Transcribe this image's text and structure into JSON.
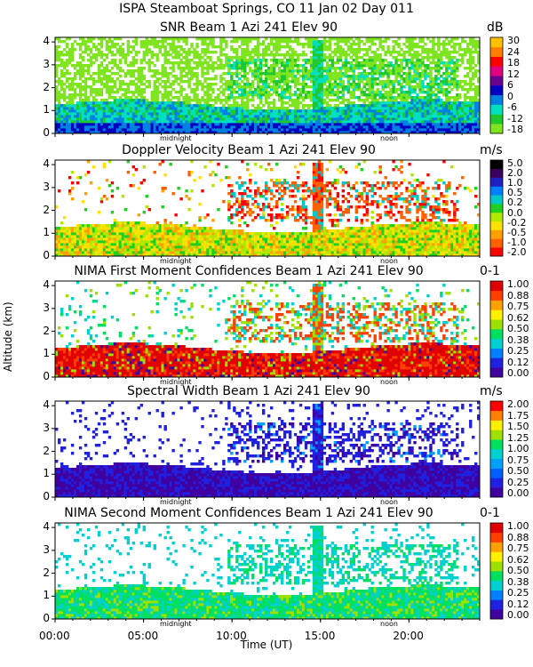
{
  "main_title": "ISPA Steamboat Springs, CO   11 Jan 02 Day 011",
  "y_axis_label": "Altitude (km)",
  "x_axis_label": "Time (UT)",
  "time_markers": {
    "midnight": "midnight",
    "noon": "noon"
  },
  "colors": {
    "snr": [
      "#7FE520",
      "#1FC830",
      "#00E0C0",
      "#0080E0",
      "#0000C0",
      "#6A0090",
      "#E00080",
      "#FF0000",
      "#FF8000",
      "#FFC000"
    ],
    "doppler": [
      "#FF0000",
      "#FF6000",
      "#FFA000",
      "#FFE000",
      "#B0E800",
      "#20D020",
      "#00C8C8",
      "#0080FF",
      "#2020C0",
      "#3A0060",
      "#000000"
    ],
    "confidence": [
      "#4000A0",
      "#2020E0",
      "#0080FF",
      "#00D0D0",
      "#00E060",
      "#A0E000",
      "#FFF000",
      "#FFA000",
      "#FF4000",
      "#E00000"
    ],
    "width": [
      "#4000A0",
      "#2020E0",
      "#0060FF",
      "#00A0FF",
      "#00D0D0",
      "#00E060",
      "#A0E000",
      "#FFF000",
      "#FF8000",
      "#FF0000"
    ]
  },
  "chart_data": [
    {
      "type": "heatmap",
      "title": "SNR Beam 1 Azi 241 Elev 90",
      "unit": "dB",
      "xlabel": "Time (UT)",
      "ylabel": "Altitude (km)",
      "x_ticks": [
        "00:00",
        "05:00",
        "10:00",
        "15:00",
        "20:00"
      ],
      "y_ticks": [
        "0",
        "1",
        "2",
        "3",
        "4"
      ],
      "ylim": [
        0,
        4.2
      ],
      "colorbar_labels": [
        "30",
        "24",
        "18",
        "12",
        "6",
        "0",
        "-6",
        "-12",
        "-18"
      ],
      "palette": "snr"
    },
    {
      "type": "heatmap",
      "title": "Doppler Velocity Beam 1 Azi 241 Elev 90",
      "unit": "m/s",
      "xlabel": "Time (UT)",
      "ylabel": "Altitude (km)",
      "x_ticks": [
        "00:00",
        "05:00",
        "10:00",
        "15:00",
        "20:00"
      ],
      "y_ticks": [
        "0",
        "1",
        "2",
        "3",
        "4"
      ],
      "ylim": [
        0,
        4.2
      ],
      "colorbar_labels": [
        "5.0",
        "2.0",
        "1.0",
        "0.5",
        "0.2",
        "0.0",
        "-0.2",
        "-0.5",
        "-1.0",
        "-2.0"
      ],
      "palette": "doppler"
    },
    {
      "type": "heatmap",
      "title": "NIMA First Moment Confidences Beam 1 Azi 241 Elev 90",
      "unit": "0-1",
      "xlabel": "Time (UT)",
      "ylabel": "Altitude (km)",
      "x_ticks": [
        "00:00",
        "05:00",
        "10:00",
        "15:00",
        "20:00"
      ],
      "y_ticks": [
        "0",
        "1",
        "2",
        "3",
        "4"
      ],
      "ylim": [
        0,
        4.2
      ],
      "colorbar_labels": [
        "1.00",
        "0.88",
        "0.75",
        "0.62",
        "0.50",
        "0.38",
        "0.25",
        "0.12",
        "0.00"
      ],
      "palette": "confidence"
    },
    {
      "type": "heatmap",
      "title": "Spectral Width Beam 1 Azi 241 Elev 90",
      "unit": "m/s",
      "xlabel": "Time (UT)",
      "ylabel": "Altitude (km)",
      "x_ticks": [
        "00:00",
        "05:00",
        "10:00",
        "15:00",
        "20:00"
      ],
      "y_ticks": [
        "0",
        "1",
        "2",
        "3",
        "4"
      ],
      "ylim": [
        0,
        4.2
      ],
      "colorbar_labels": [
        "2.00",
        "1.75",
        "1.50",
        "1.25",
        "1.00",
        "0.75",
        "0.50",
        "0.25",
        "0.00"
      ],
      "palette": "width"
    },
    {
      "type": "heatmap",
      "title": "NIMA Second Moment Confidences Beam 1 Azi 241 Elev 90",
      "unit": "0-1",
      "xlabel": "Time (UT)",
      "ylabel": "Altitude (km)",
      "x_ticks": [
        "00:00",
        "05:00",
        "10:00",
        "15:00",
        "20:00"
      ],
      "y_ticks": [
        "0",
        "1",
        "2",
        "3",
        "4"
      ],
      "ylim": [
        0,
        4.2
      ],
      "colorbar_labels": [
        "1.00",
        "0.88",
        "0.75",
        "0.62",
        "0.50",
        "0.38",
        "0.25",
        "0.12",
        "0.00"
      ],
      "palette": "confidence"
    }
  ]
}
